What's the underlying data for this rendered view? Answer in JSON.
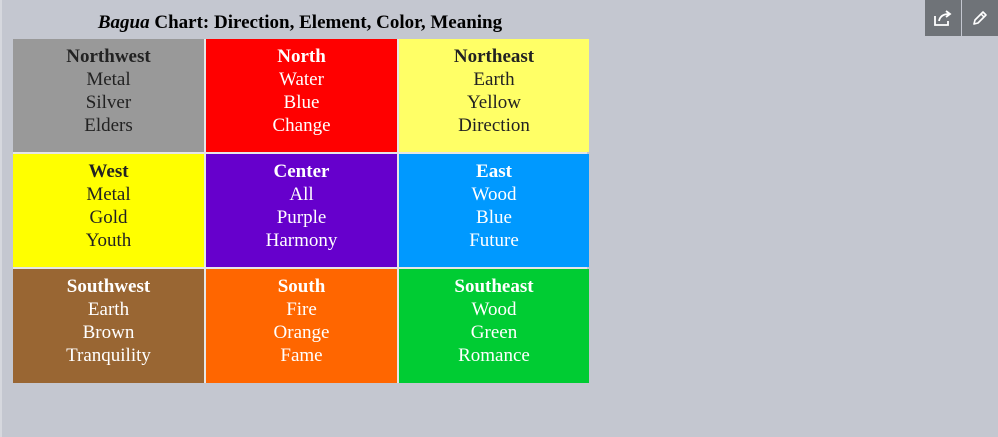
{
  "caption": {
    "italic": "Bagua",
    "rest": " Chart: Direction, Element, Color, Meaning"
  },
  "cells": [
    {
      "direction": "Northwest",
      "element": "Metal",
      "color": "Silver",
      "meaning": "Elders",
      "bg": "#999999",
      "fg": "#222222"
    },
    {
      "direction": "North",
      "element": "Water",
      "color": "Blue",
      "meaning": "Change",
      "bg": "#ff0000",
      "fg": "#ffffff"
    },
    {
      "direction": "Northeast",
      "element": "Earth",
      "color": "Yellow",
      "meaning": "Direction",
      "bg": "#ffff66",
      "fg": "#222222"
    },
    {
      "direction": "West",
      "element": "Metal",
      "color": "Gold",
      "meaning": "Youth",
      "bg": "#ffff00",
      "fg": "#222222"
    },
    {
      "direction": "Center",
      "element": "All",
      "color": "Purple",
      "meaning": "Harmony",
      "bg": "#6600cc",
      "fg": "#ffffff"
    },
    {
      "direction": "East",
      "element": "Wood",
      "color": "Blue",
      "meaning": "Future",
      "bg": "#0099ff",
      "fg": "#ffffff"
    },
    {
      "direction": "Southwest",
      "element": "Earth",
      "color": "Brown",
      "meaning": "Tranquility",
      "bg": "#996633",
      "fg": "#ffffff"
    },
    {
      "direction": "South",
      "element": "Fire",
      "color": "Orange",
      "meaning": "Fame",
      "bg": "#ff6600",
      "fg": "#ffffff"
    },
    {
      "direction": "Southeast",
      "element": "Wood",
      "color": "Green",
      "meaning": "Romance",
      "bg": "#00cc33",
      "fg": "#ffffff"
    }
  ],
  "toolbar": {
    "share_icon": "share-icon",
    "edit_icon": "pencil-icon"
  }
}
